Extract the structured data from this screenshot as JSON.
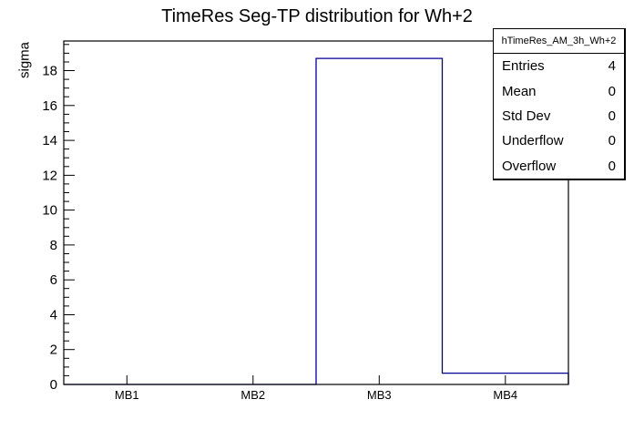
{
  "chart_data": {
    "type": "bar",
    "subtype": "histogram-outline",
    "title": "TimeRes Seg-TP distribution for Wh+2",
    "xlabel": "",
    "ylabel": "sigma",
    "categories": [
      "MB1",
      "MB2",
      "MB3",
      "MB4"
    ],
    "values": [
      0,
      0,
      18.7,
      0.65
    ],
    "ylim": [
      0,
      19.7
    ],
    "yticks": [
      0,
      2,
      4,
      6,
      8,
      10,
      12,
      14,
      16,
      18
    ],
    "ytick_minor_step": 0.5,
    "grid": false,
    "legend_position": "none",
    "line_color": "#000099",
    "frame_color": "#000000",
    "background_color": "#ffffff",
    "text_color": "#000000"
  },
  "stats_box": {
    "title": "hTimeRes_AM_3h_Wh+2",
    "rows": [
      {
        "label": "Entries",
        "value": "4"
      },
      {
        "label": "Mean",
        "value": "0"
      },
      {
        "label": "Std Dev",
        "value": "0"
      },
      {
        "label": "Underflow",
        "value": "0"
      },
      {
        "label": "Overflow",
        "value": "0"
      }
    ]
  }
}
